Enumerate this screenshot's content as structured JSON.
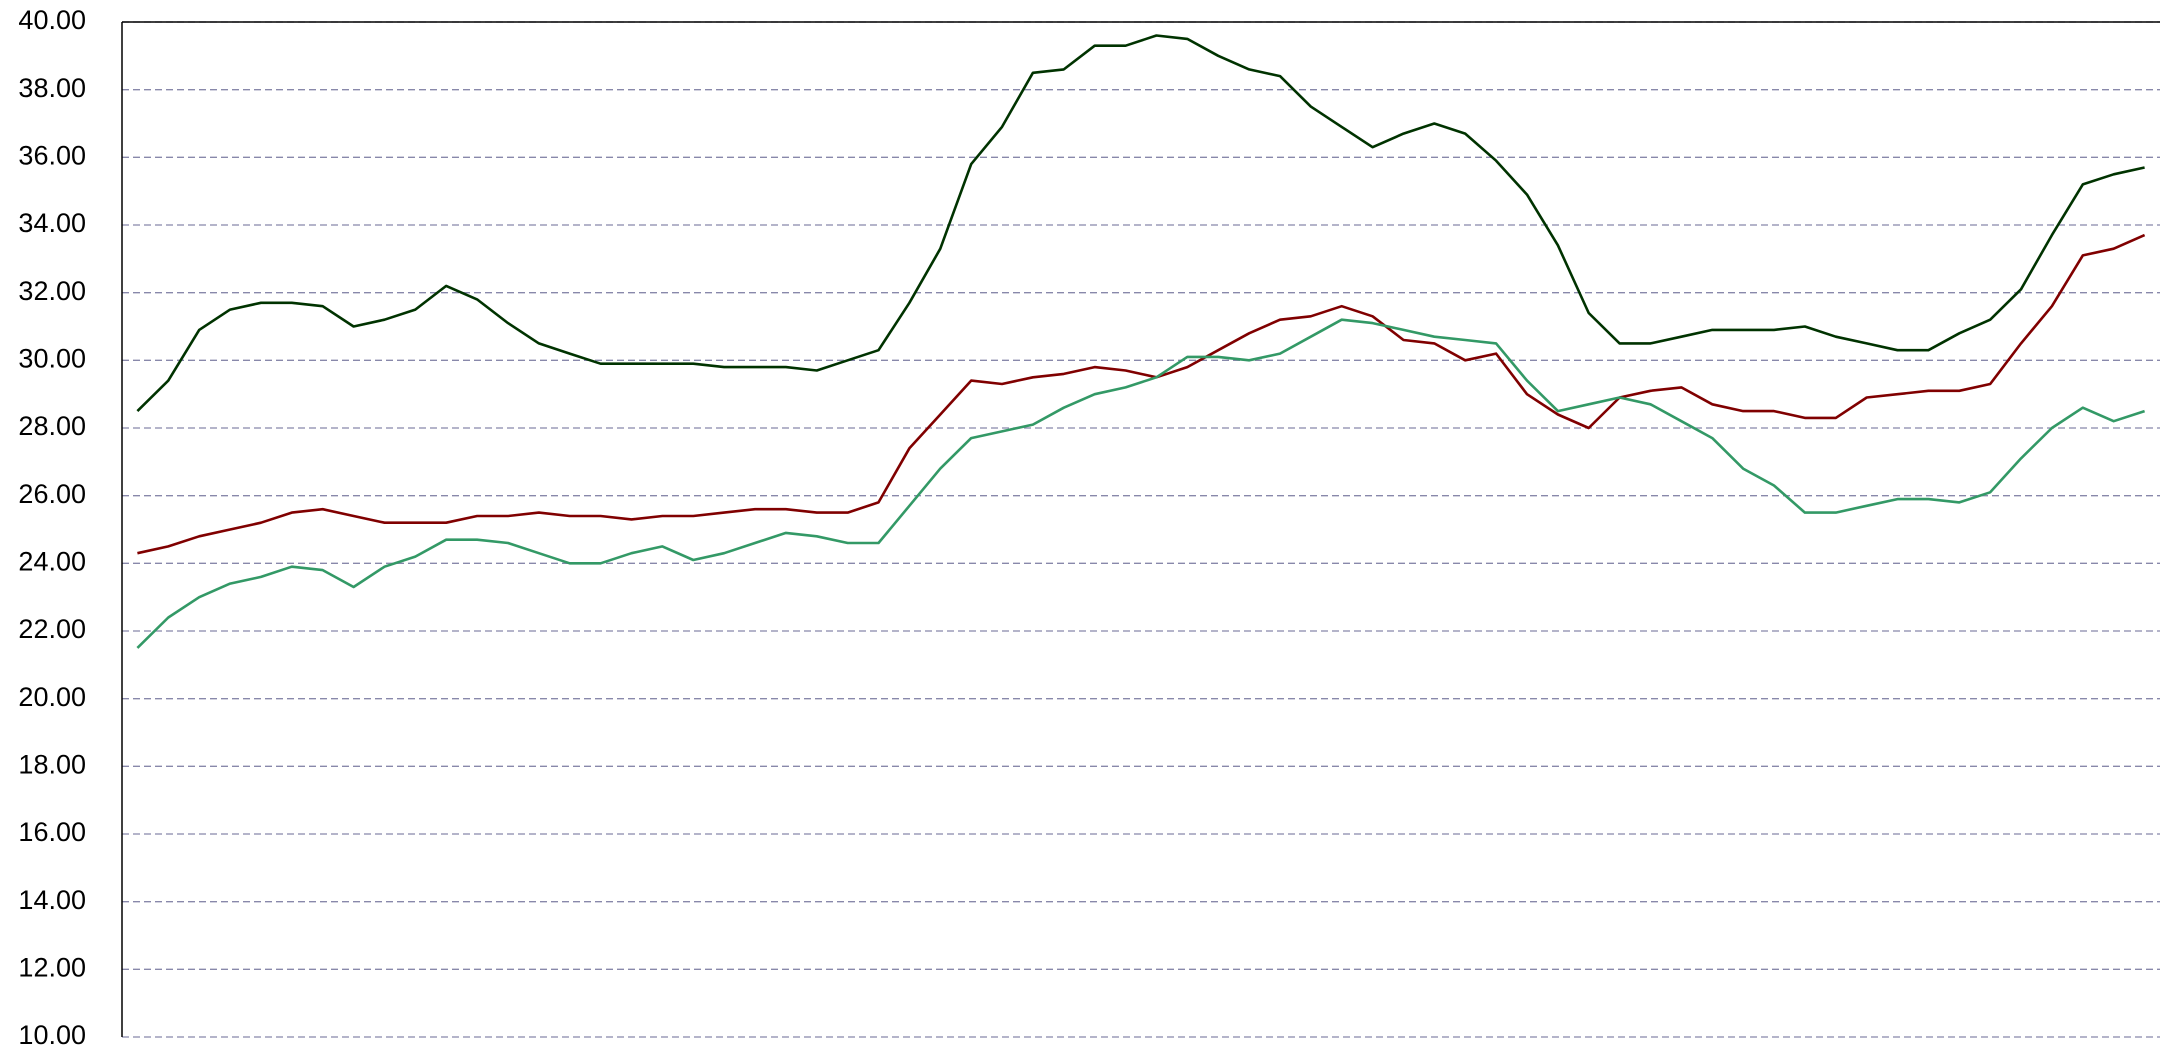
{
  "chart_data": {
    "type": "line",
    "categories": [
      null,
      null,
      null,
      null,
      null,
      null,
      null,
      null,
      null,
      null,
      null,
      null,
      null,
      null,
      null,
      null,
      null,
      null,
      null,
      null,
      null,
      null,
      null,
      null,
      null,
      null,
      null,
      null,
      null,
      null,
      null,
      null,
      null,
      null,
      null,
      null,
      null,
      null,
      null,
      null,
      null,
      null,
      null,
      null,
      null,
      null,
      null,
      null,
      null,
      null,
      null,
      null,
      null,
      null,
      null,
      null,
      null,
      null,
      null,
      null,
      null,
      null,
      null,
      null,
      null,
      null
    ],
    "series": [
      {
        "color": "#003300",
        "values": [
          28.5,
          29.4,
          30.9,
          31.5,
          31.7,
          31.7,
          31.6,
          31.0,
          31.2,
          31.5,
          32.2,
          31.8,
          31.1,
          30.5,
          30.2,
          29.9,
          29.9,
          29.9,
          29.9,
          29.8,
          29.8,
          29.8,
          29.7,
          30.0,
          30.3,
          31.7,
          33.3,
          35.8,
          36.9,
          38.5,
          38.6,
          39.3,
          39.3,
          39.6,
          39.5,
          39.0,
          38.6,
          38.4,
          37.5,
          36.9,
          36.3,
          36.7,
          37.0,
          36.7,
          35.9,
          34.9,
          33.4,
          31.4,
          30.5,
          30.5,
          30.7,
          30.9,
          30.9,
          30.9,
          31.0,
          30.7,
          30.5,
          30.3,
          30.3,
          30.8,
          31.2,
          32.1,
          33.7,
          35.2,
          35.5,
          35.7
        ]
      },
      {
        "color": "#800000",
        "values": [
          24.3,
          24.5,
          24.8,
          25.0,
          25.2,
          25.5,
          25.6,
          25.4,
          25.2,
          25.2,
          25.2,
          25.4,
          25.4,
          25.5,
          25.4,
          25.4,
          25.3,
          25.4,
          25.4,
          25.5,
          25.6,
          25.6,
          25.5,
          25.5,
          25.8,
          27.4,
          28.4,
          29.4,
          29.3,
          29.5,
          29.6,
          29.8,
          29.7,
          29.5,
          29.8,
          30.3,
          30.8,
          31.2,
          31.3,
          31.6,
          31.3,
          30.6,
          30.5,
          30.0,
          30.2,
          29.0,
          28.4,
          28.0,
          28.9,
          29.1,
          29.2,
          28.7,
          28.5,
          28.5,
          28.3,
          28.3,
          28.9,
          29.0,
          29.1,
          29.1,
          29.3,
          30.5,
          31.6,
          33.1,
          33.3,
          33.7
        ]
      },
      {
        "color": "#339966",
        "values": [
          21.5,
          22.4,
          23.0,
          23.4,
          23.6,
          23.9,
          23.8,
          23.3,
          23.9,
          24.2,
          24.7,
          24.7,
          24.6,
          24.3,
          24.0,
          24.0,
          24.3,
          24.5,
          24.1,
          24.3,
          24.6,
          24.9,
          24.8,
          24.6,
          24.6,
          25.7,
          26.8,
          27.7,
          27.9,
          28.1,
          28.6,
          29.0,
          29.2,
          29.5,
          30.1,
          30.1,
          30.0,
          30.2,
          30.7,
          31.2,
          31.1,
          30.9,
          30.7,
          30.6,
          30.5,
          29.4,
          28.5,
          28.7,
          28.9,
          28.7,
          28.2,
          27.7,
          26.8,
          26.3,
          25.5,
          25.5,
          25.7,
          25.9,
          25.9,
          25.8,
          26.1,
          27.1,
          28.0,
          28.6,
          28.2,
          28.5
        ]
      }
    ],
    "ylim": [
      10,
      40
    ],
    "yticks": [
      {
        "value": 10,
        "label": "10.00"
      },
      {
        "value": 12,
        "label": "12.00"
      },
      {
        "value": 14,
        "label": "14.00"
      },
      {
        "value": 16,
        "label": "16.00"
      },
      {
        "value": 18,
        "label": "18.00"
      },
      {
        "value": 20,
        "label": "20.00"
      },
      {
        "value": 22,
        "label": "22.00"
      },
      {
        "value": 24,
        "label": "24.00"
      },
      {
        "value": 26,
        "label": "26.00"
      },
      {
        "value": 28,
        "label": "28.00"
      },
      {
        "value": 30,
        "label": "30.00"
      },
      {
        "value": 32,
        "label": "32.00"
      },
      {
        "value": 34,
        "label": "34.00"
      },
      {
        "value": 36,
        "label": "36.00"
      },
      {
        "value": 38,
        "label": "38.00"
      },
      {
        "value": 40,
        "label": "40.00"
      }
    ],
    "grid": true
  }
}
